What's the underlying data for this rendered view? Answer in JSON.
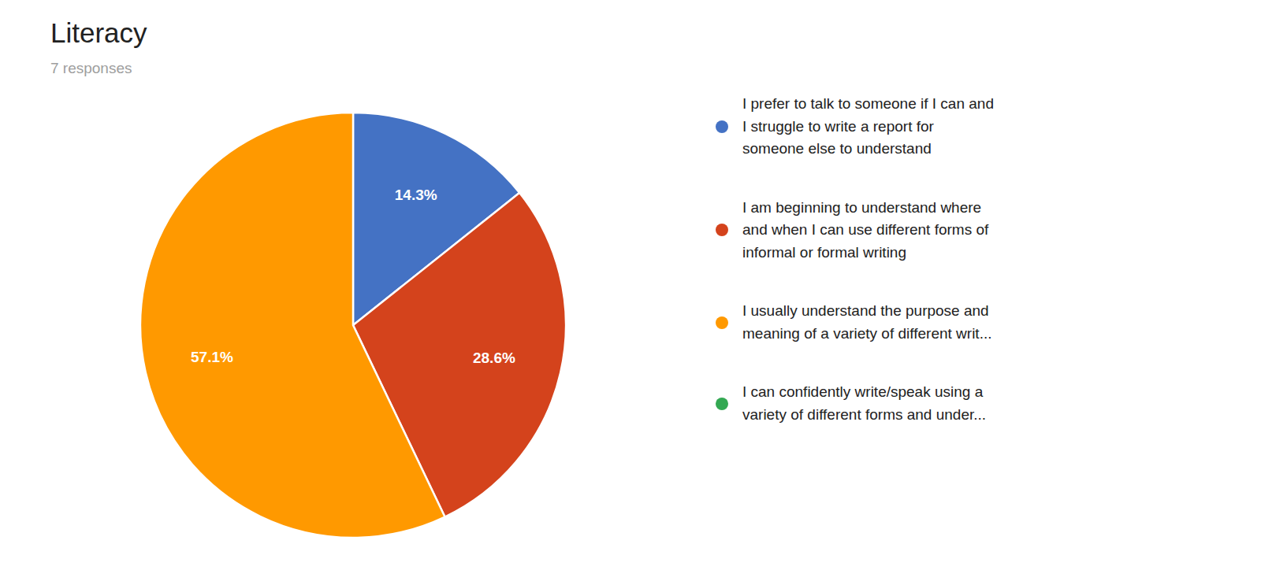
{
  "chart_data": {
    "type": "pie",
    "title": "Literacy",
    "subtitle": "7 responses",
    "categories": [
      "I prefer to talk to someone if I can and\nI struggle to write a report for\nsomeone else to understand",
      "I am beginning to understand where\nand when I can use different forms of\ninformal or formal writing",
      "I usually understand the purpose and\nmeaning of a variety of different writ...",
      "I can confidently write/speak using a\nvariety of different forms and under..."
    ],
    "values": [
      14.3,
      28.6,
      57.1,
      0.0
    ],
    "value_labels": [
      "14.3%",
      "28.6%",
      "57.1%",
      null
    ],
    "colors": [
      "#4472C4",
      "#D4431C",
      "#FF9900",
      "#33A852"
    ],
    "data_labels": true,
    "legend": "right"
  }
}
